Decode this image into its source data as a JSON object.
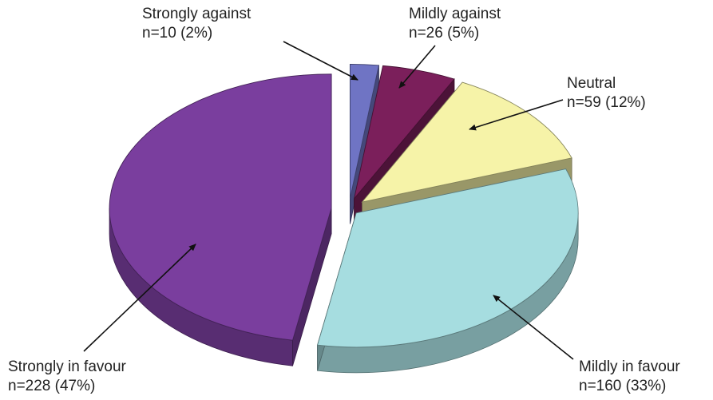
{
  "chart_data": {
    "type": "pie",
    "style": "3d-exploded",
    "slices": [
      {
        "label": "Strongly against",
        "n": 10,
        "percent": 2,
        "count_text": "n=10 (2%)",
        "color": "#6f74c4"
      },
      {
        "label": "Mildly against",
        "n": 26,
        "percent": 5,
        "count_text": "n=26 (5%)",
        "color": "#7b1f5b"
      },
      {
        "label": "Neutral",
        "n": 59,
        "percent": 12,
        "count_text": "n=59 (12%)",
        "color": "#f6f3a8"
      },
      {
        "label": "Mildly in favour",
        "n": 160,
        "percent": 33,
        "count_text": "n=160 (33%)",
        "color": "#a6dde0"
      },
      {
        "label": "Strongly in favour",
        "n": 228,
        "percent": 47,
        "count_text": "n=228 (47%)",
        "color": "#7a3e9e"
      }
    ],
    "legend": "callout-labels"
  }
}
